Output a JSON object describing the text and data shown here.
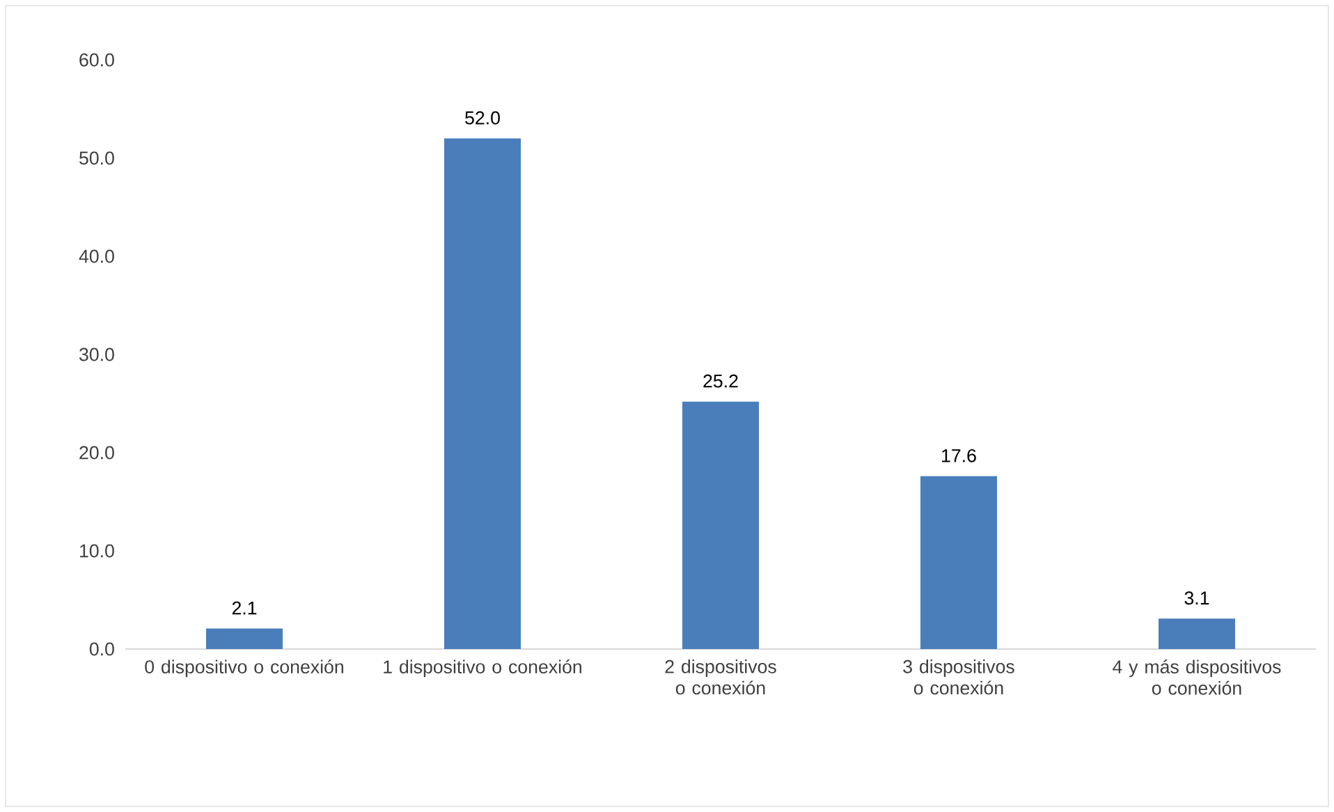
{
  "chart_data": {
    "type": "bar",
    "categories": [
      "0 dispositivo o conexión",
      "1 dispositivo o conexión",
      "2 dispositivos o conexión",
      "3 dispositivos o conexión",
      "4 y más dispositivos o conexión"
    ],
    "values": [
      2.1,
      52.0,
      25.2,
      17.6,
      3.1
    ],
    "value_labels": [
      "2.1",
      "52.0",
      "25.2",
      "17.6",
      "3.1"
    ],
    "color": "#4a7ebb",
    "ylim": [
      0,
      60
    ],
    "yticks": [
      {
        "value": 0,
        "label": "0.0"
      },
      {
        "value": 10,
        "label": "10.0"
      },
      {
        "value": 20,
        "label": "20.0"
      },
      {
        "value": 30,
        "label": "30.0"
      },
      {
        "value": 40,
        "label": "40.0"
      },
      {
        "value": 50,
        "label": "50.0"
      },
      {
        "value": 60,
        "label": "60.0"
      }
    ],
    "grid": false
  }
}
